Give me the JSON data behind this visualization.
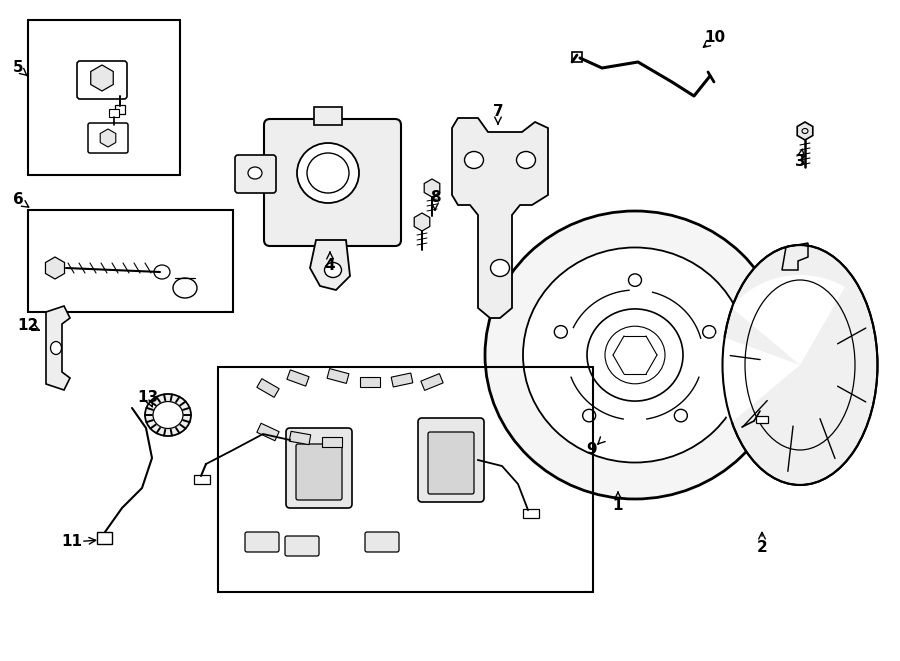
{
  "bg_color": "#ffffff",
  "line_color": "#000000",
  "fig_width": 9.0,
  "fig_height": 6.61,
  "label_data": [
    [
      "1",
      618,
      505,
      618,
      488
    ],
    [
      "2",
      762,
      548,
      762,
      528
    ],
    [
      "3",
      800,
      162,
      803,
      145
    ],
    [
      "4",
      330,
      265,
      330,
      248
    ],
    [
      "5",
      18,
      68,
      30,
      78
    ],
    [
      "6",
      18,
      200,
      30,
      208
    ],
    [
      "7",
      498,
      112,
      498,
      128
    ],
    [
      "8",
      435,
      198,
      435,
      214
    ],
    [
      "9",
      592,
      450,
      597,
      445
    ],
    [
      "10",
      715,
      38,
      700,
      50
    ],
    [
      "11",
      72,
      542,
      100,
      540
    ],
    [
      "12",
      28,
      325,
      43,
      332
    ],
    [
      "13",
      148,
      398,
      153,
      408
    ]
  ]
}
